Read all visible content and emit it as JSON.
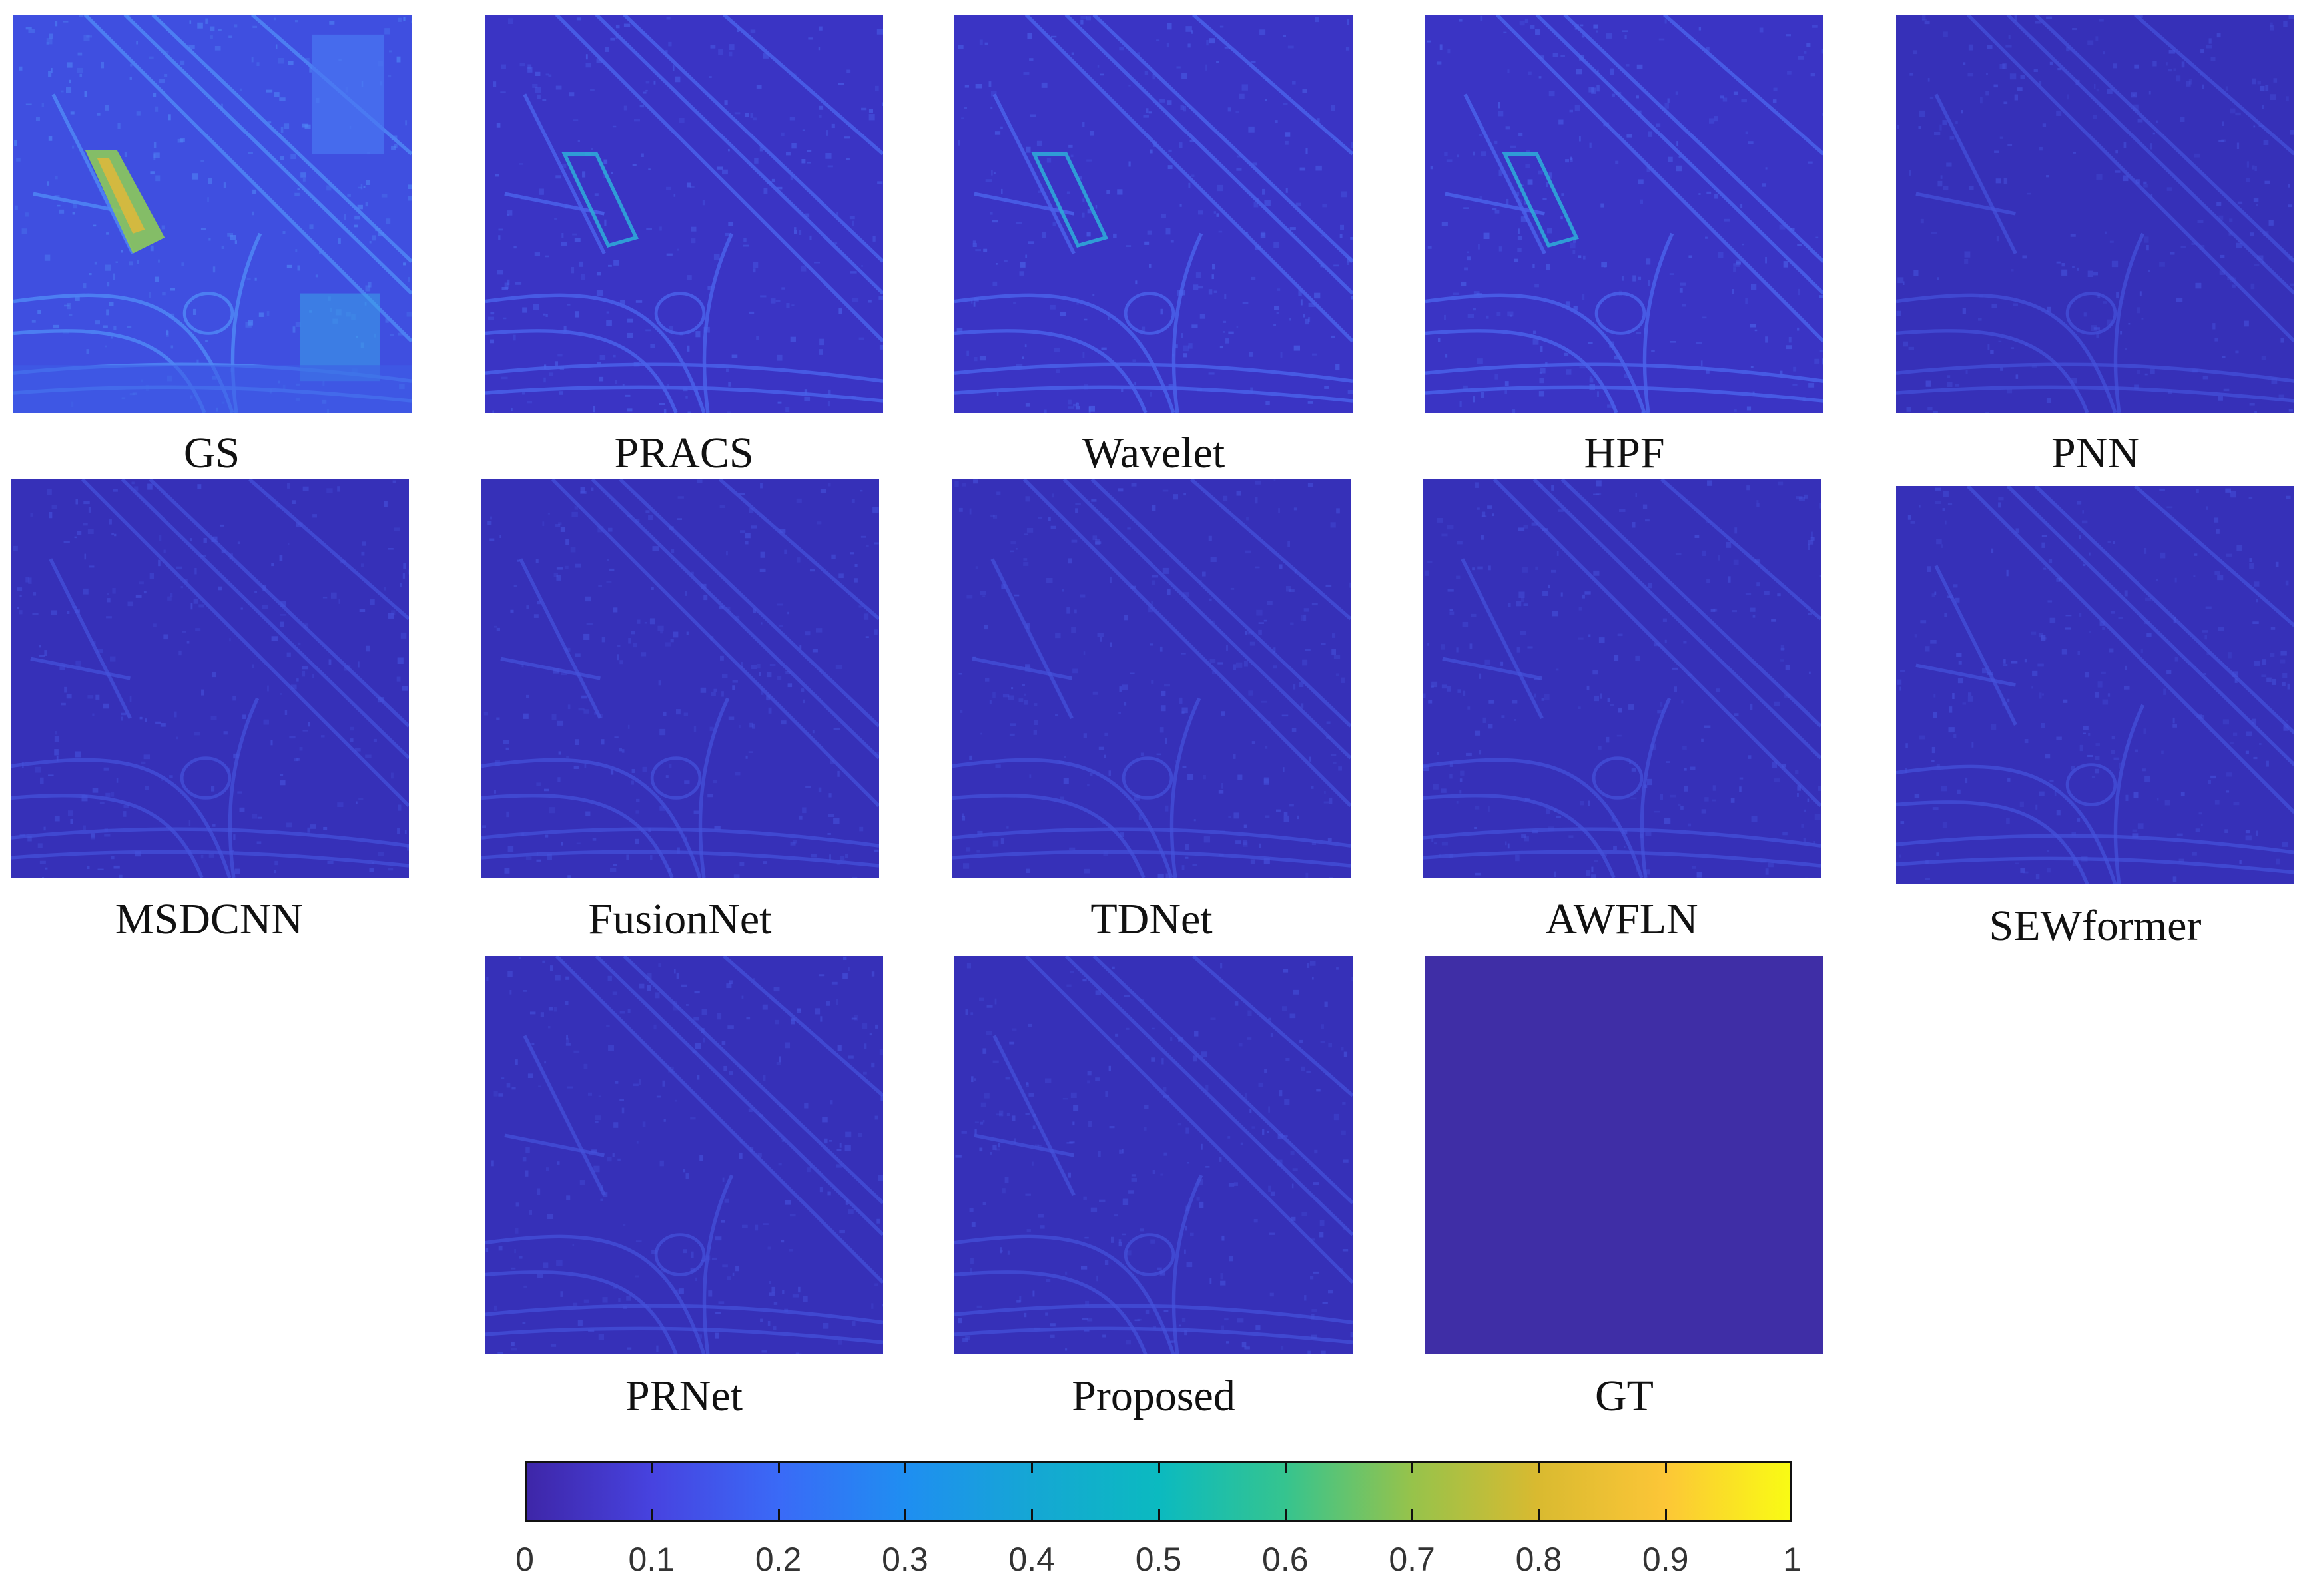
{
  "panels": [
    {
      "label": "GS"
    },
    {
      "label": "PRACS"
    },
    {
      "label": "Wavelet"
    },
    {
      "label": "HPF"
    },
    {
      "label": "PNN"
    },
    {
      "label": "MSDCNN"
    },
    {
      "label": "FusionNet"
    },
    {
      "label": "TDNet"
    },
    {
      "label": "AWFLN"
    },
    {
      "label": "SEWformer"
    },
    {
      "label": "PRNet"
    },
    {
      "label": "Proposed"
    },
    {
      "label": "GT"
    }
  ],
  "colorbar": {
    "colormap": "parula",
    "range": [
      0,
      1
    ],
    "ticks": [
      "0",
      "0.1",
      "0.2",
      "0.3",
      "0.4",
      "0.5",
      "0.6",
      "0.7",
      "0.8",
      "0.9",
      "1"
    ],
    "colors": [
      "#3e26a8",
      "#4743e0",
      "#3a6af7",
      "#1f8ef1",
      "#15a7d4",
      "#0bbac0",
      "#35c48f",
      "#96c34b",
      "#d9ba30",
      "#fcc637",
      "#f9fb14"
    ]
  }
}
